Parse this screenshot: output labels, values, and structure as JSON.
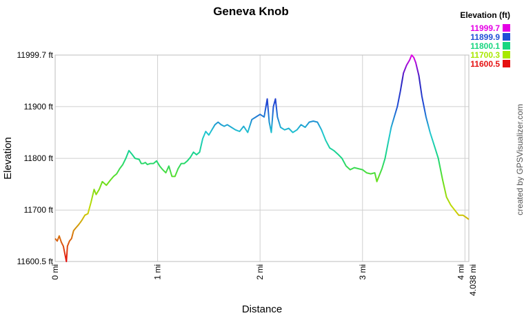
{
  "chart_data": {
    "type": "line",
    "title": "Geneva Knob",
    "xlabel": "Distance",
    "ylabel": "Elevation",
    "x_unit": "mi",
    "y_unit": "ft",
    "xlim": [
      0,
      4.038
    ],
    "ylim": [
      11600.5,
      11999.7
    ],
    "x_ticks": [
      {
        "value": 0,
        "label": "0 mi"
      },
      {
        "value": 1,
        "label": "1 mi"
      },
      {
        "value": 2,
        "label": "2 mi"
      },
      {
        "value": 3,
        "label": "3 mi"
      },
      {
        "value": 4,
        "label": "4 mi"
      },
      {
        "value": 4.038,
        "label": "4.038 mi"
      }
    ],
    "y_ticks": [
      {
        "value": 11600.5,
        "label": "11600.5 ft"
      },
      {
        "value": 11700,
        "label": "11700 ft"
      },
      {
        "value": 11800,
        "label": "11800 ft"
      },
      {
        "value": 11900,
        "label": "11900 ft"
      },
      {
        "value": 11999.7,
        "label": "11999.7 ft"
      }
    ],
    "grid": true,
    "legend": {
      "title": "Elevation (ft)",
      "placement": "top-right",
      "entries": [
        {
          "label": "11999.7",
          "color": "#e500e5"
        },
        {
          "label": "11899.9",
          "color": "#1f4fd6"
        },
        {
          "label": "11800.1",
          "color": "#18d680"
        },
        {
          "label": "11700.3",
          "color": "#a8e800"
        },
        {
          "label": "11600.5",
          "color": "#e51010"
        }
      ]
    },
    "credit": "created by GPSVisualizer.com",
    "series": [
      {
        "x": [
          0.0,
          0.02,
          0.04,
          0.06,
          0.08,
          0.1,
          0.11,
          0.12,
          0.14,
          0.16,
          0.18,
          0.2,
          0.23,
          0.26,
          0.29,
          0.32,
          0.35,
          0.38,
          0.4,
          0.43,
          0.46,
          0.5,
          0.54,
          0.57,
          0.6,
          0.63,
          0.66,
          0.69,
          0.72,
          0.75,
          0.78,
          0.82,
          0.84,
          0.86,
          0.88,
          0.9,
          0.93,
          0.96,
          0.99,
          1.02,
          1.05,
          1.08,
          1.11,
          1.14,
          1.17,
          1.2,
          1.23,
          1.26,
          1.29,
          1.32,
          1.35,
          1.38,
          1.41,
          1.44,
          1.47,
          1.5,
          1.53,
          1.56,
          1.59,
          1.62,
          1.65,
          1.68,
          1.72,
          1.76,
          1.8,
          1.84,
          1.88,
          1.92,
          1.96,
          2.0,
          2.04,
          2.07,
          2.09,
          2.11,
          2.13,
          2.15,
          2.17,
          2.2,
          2.24,
          2.28,
          2.32,
          2.36,
          2.4,
          2.44,
          2.48,
          2.52,
          2.56,
          2.6,
          2.64,
          2.68,
          2.72,
          2.76,
          2.8,
          2.84,
          2.88,
          2.92,
          2.96,
          3.0,
          3.04,
          3.08,
          3.12,
          3.14,
          3.16,
          3.19,
          3.22,
          3.25,
          3.28,
          3.31,
          3.34,
          3.37,
          3.4,
          3.43,
          3.46,
          3.48,
          3.5,
          3.52,
          3.55,
          3.58,
          3.62,
          3.66,
          3.7,
          3.74,
          3.78,
          3.82,
          3.86,
          3.9,
          3.94,
          3.98,
          4.01,
          4.038
        ],
        "y": [
          11645,
          11640,
          11650,
          11638,
          11630,
          11610,
          11600.5,
          11630,
          11640,
          11645,
          11660,
          11665,
          11672,
          11680,
          11690,
          11693,
          11715,
          11740,
          11730,
          11740,
          11755,
          11748,
          11758,
          11765,
          11770,
          11780,
          11788,
          11800,
          11815,
          11808,
          11800,
          11798,
          11790,
          11790,
          11792,
          11788,
          11790,
          11790,
          11795,
          11785,
          11778,
          11772,
          11785,
          11765,
          11765,
          11780,
          11790,
          11790,
          11795,
          11802,
          11812,
          11807,
          11812,
          11838,
          11852,
          11845,
          11855,
          11865,
          11870,
          11865,
          11862,
          11865,
          11860,
          11855,
          11852,
          11862,
          11850,
          11875,
          11880,
          11885,
          11880,
          11915,
          11870,
          11850,
          11900,
          11915,
          11880,
          11860,
          11855,
          11858,
          11850,
          11855,
          11865,
          11860,
          11870,
          11872,
          11870,
          11855,
          11835,
          11820,
          11815,
          11808,
          11800,
          11785,
          11778,
          11782,
          11780,
          11778,
          11772,
          11770,
          11772,
          11755,
          11765,
          11780,
          11800,
          11830,
          11860,
          11880,
          11900,
          11930,
          11965,
          11980,
          11990,
          11999.7,
          11995,
          11985,
          11960,
          11920,
          11880,
          11850,
          11825,
          11800,
          11760,
          11725,
          11710,
          11700,
          11690,
          11690,
          11686,
          11682
        ]
      }
    ]
  }
}
